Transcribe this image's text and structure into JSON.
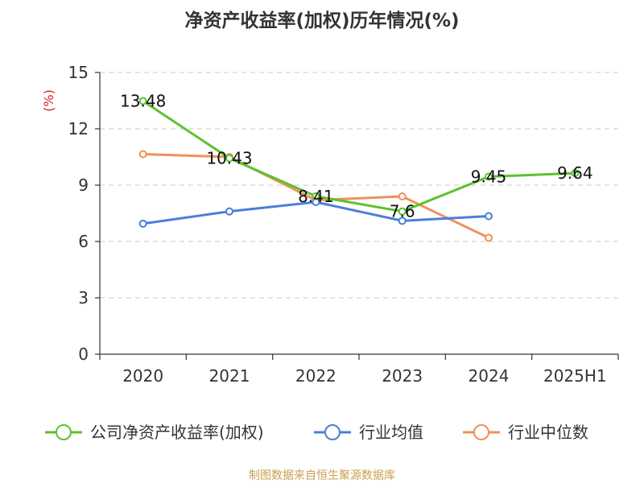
{
  "title": "净资产收益率(加权)历年情况(%)",
  "source": "制图数据来自恒生聚源数据库",
  "chart_data": {
    "type": "line",
    "title": "净资产收益率(加权)历年情况(%)",
    "ylabel": "(%)",
    "xlabel": "",
    "categories": [
      "2020",
      "2021",
      "2022",
      "2023",
      "2024",
      "2025H1"
    ],
    "ylim": [
      0,
      15
    ],
    "yticks": [
      0,
      3,
      6,
      9,
      12,
      15
    ],
    "grid": true,
    "legend_position": "bottom",
    "series": [
      {
        "name": "公司净资产收益率(加权)",
        "color": "#5cc22e",
        "values": [
          13.48,
          10.43,
          8.41,
          7.6,
          9.45,
          9.64
        ],
        "labels": [
          "13.48",
          "10.43",
          "8.41",
          "7.6",
          "9.45",
          "9.64"
        ]
      },
      {
        "name": "行业均值",
        "color": "#4a7fd8",
        "values": [
          6.95,
          7.6,
          8.1,
          7.1,
          7.35,
          null
        ]
      },
      {
        "name": "行业中位数",
        "color": "#f0905a",
        "values": [
          10.65,
          10.5,
          8.2,
          8.4,
          6.2,
          null
        ]
      }
    ]
  }
}
